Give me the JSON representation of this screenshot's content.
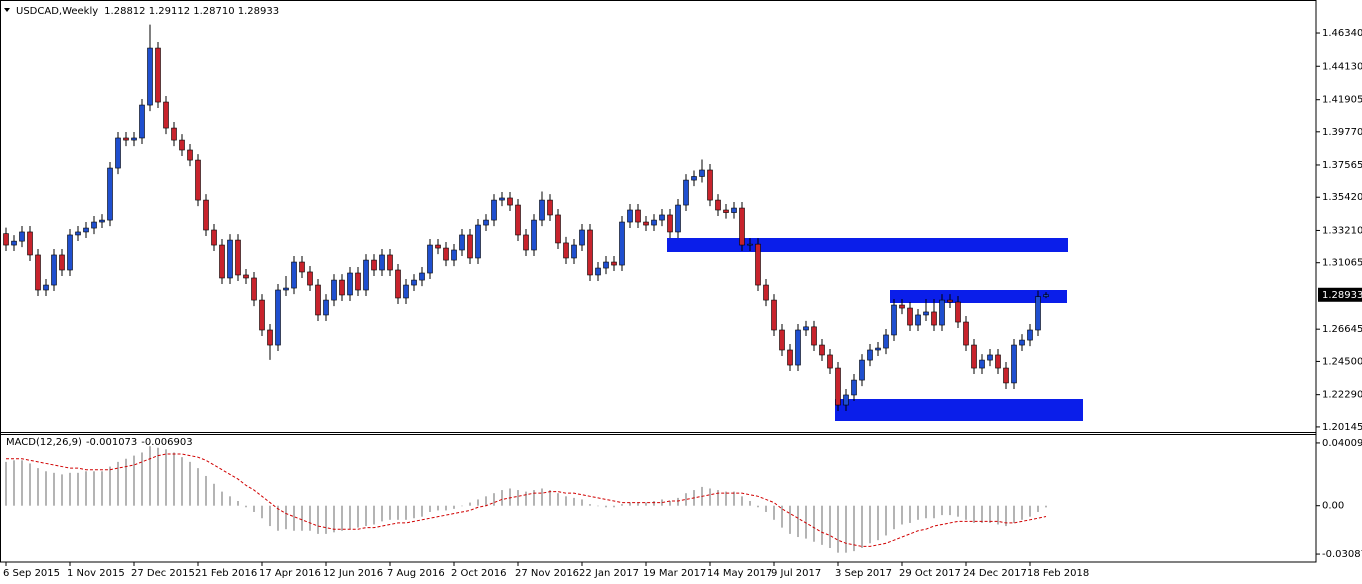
{
  "chart_data": [
    {
      "type": "candlestick",
      "title": "USDCAD,Weekly",
      "subtitle": "1.28812 1.29112 1.28710 1.28933",
      "up_color": "#1f4fcf",
      "down_color": "#c8232c",
      "wick_color": "#000000",
      "categories": [
        "6 Sep 2015",
        null,
        null,
        null,
        null,
        null,
        null,
        null,
        "1 Nov 2015",
        null,
        null,
        null,
        null,
        null,
        null,
        null,
        "27 Dec 2015",
        null,
        null,
        null,
        null,
        null,
        null,
        null,
        "21 Feb 2016",
        null,
        null,
        null,
        null,
        null,
        null,
        null,
        "17 Apr 2016",
        null,
        null,
        null,
        null,
        null,
        null,
        null,
        "12 Jun 2016",
        null,
        null,
        null,
        null,
        null,
        null,
        null,
        "7 Aug 2016",
        null,
        null,
        null,
        null,
        null,
        null,
        null,
        "2 Oct 2016",
        null,
        null,
        null,
        null,
        null,
        null,
        null,
        "27 Nov 2016",
        null,
        null,
        null,
        null,
        null,
        null,
        null,
        "22 Jan 2017",
        null,
        null,
        null,
        null,
        null,
        null,
        null,
        "19 Mar 2017",
        null,
        null,
        null,
        null,
        null,
        null,
        null,
        "14 May 2017",
        null,
        null,
        null,
        null,
        null,
        null,
        null,
        "9 Jul 2017",
        null,
        null,
        null,
        null,
        null,
        null,
        null,
        "3 Sep 2017",
        null,
        null,
        null,
        null,
        null,
        null,
        null,
        "29 Oct 2017",
        null,
        null,
        null,
        null,
        null,
        null,
        null,
        "24 Dec 2017",
        null,
        null,
        null,
        null,
        null,
        null,
        null,
        "18 Feb 2018",
        null,
        null
      ],
      "open": [
        1.33,
        1.3224,
        1.325,
        1.3311,
        1.3158,
        1.2925,
        1.2958,
        1.3158,
        1.3058,
        1.3291,
        1.3311,
        1.3337,
        1.3377,
        1.339,
        1.3736,
        1.3936,
        1.3922,
        1.3936,
        1.4155,
        1.4534,
        1.4175,
        1.4002,
        1.3922,
        1.3856,
        1.3789,
        1.3523,
        1.3324,
        1.3224,
        1.3005,
        1.3257,
        1.3025,
        1.3005,
        1.2858,
        1.2659,
        1.2559,
        1.2925,
        1.2938,
        1.3111,
        1.3045,
        1.2958,
        1.2759,
        1.2858,
        1.2991,
        1.2892,
        1.3038,
        1.2925,
        1.3124,
        1.3058,
        1.3158,
        1.3058,
        1.2872,
        1.2958,
        1.2991,
        1.3038,
        1.3224,
        1.3204,
        1.3124,
        1.3191,
        1.3291,
        1.3138,
        1.3357,
        1.339,
        1.3523,
        1.3537,
        1.349,
        1.3291,
        1.3191,
        1.339,
        1.3523,
        1.3424,
        1.3238,
        1.3138,
        1.3224,
        1.3324,
        1.3025,
        1.3071,
        1.3111,
        1.3091,
        1.3377,
        1.3457,
        1.3377,
        1.3357,
        1.339,
        1.3424,
        1.3311,
        1.349,
        1.3656,
        1.368,
        1.3723,
        1.3523,
        1.3457,
        1.344,
        1.347,
        1.3224,
        1.323,
        1.2958,
        1.2858,
        1.2659,
        1.2526,
        1.2426,
        1.2659,
        1.268,
        1.2559,
        1.2493,
        1.2406,
        1.216,
        1.2227,
        1.2326,
        1.2459,
        1.2526,
        1.2539,
        1.2626,
        1.2825,
        1.2805,
        1.2692,
        1.2759,
        1.2779,
        1.2692,
        1.2858,
        1.2845,
        1.2712,
        1.2559,
        1.2406,
        1.2459,
        1.2493,
        1.2406,
        1.2307,
        1.2559,
        1.2592,
        1.2659,
        1.28812
      ],
      "high": [
        1.334,
        1.329,
        1.3351,
        1.3351,
        1.3198,
        1.2998,
        1.3198,
        1.3198,
        1.3331,
        1.3351,
        1.3377,
        1.3417,
        1.343,
        1.3776,
        1.3976,
        1.3976,
        1.3976,
        1.4195,
        1.469,
        1.4574,
        1.4215,
        1.4042,
        1.3962,
        1.3896,
        1.3829,
        1.3563,
        1.3364,
        1.3264,
        1.3297,
        1.3297,
        1.3065,
        1.3045,
        1.2898,
        1.2699,
        1.2965,
        1.3018,
        1.3151,
        1.3151,
        1.3085,
        1.2998,
        1.2898,
        1.3031,
        1.3031,
        1.3078,
        1.3078,
        1.3164,
        1.3164,
        1.3198,
        1.3198,
        1.3098,
        1.2998,
        1.3031,
        1.3078,
        1.3264,
        1.3264,
        1.3244,
        1.3231,
        1.3331,
        1.3331,
        1.3397,
        1.343,
        1.3563,
        1.3577,
        1.3577,
        1.353,
        1.3331,
        1.343,
        1.358,
        1.3563,
        1.3464,
        1.3278,
        1.3264,
        1.3364,
        1.3364,
        1.3111,
        1.3151,
        1.3151,
        1.3417,
        1.3497,
        1.3497,
        1.3417,
        1.343,
        1.3464,
        1.3464,
        1.353,
        1.3696,
        1.372,
        1.3793,
        1.3763,
        1.3563,
        1.3497,
        1.351,
        1.351,
        1.327,
        1.327,
        1.2998,
        1.2898,
        1.2699,
        1.2566,
        1.2699,
        1.272,
        1.272,
        1.2599,
        1.2533,
        1.2446,
        1.2267,
        1.2366,
        1.2499,
        1.2566,
        1.2579,
        1.2666,
        1.2865,
        1.2865,
        1.2845,
        1.2799,
        1.2865,
        1.2865,
        1.2898,
        1.2898,
        1.2885,
        1.2752,
        1.2599,
        1.2499,
        1.2533,
        1.2533,
        1.2446,
        1.2599,
        1.2632,
        1.2699,
        1.2921,
        1.29112
      ],
      "low": [
        1.3184,
        1.3184,
        1.321,
        1.3118,
        1.2885,
        1.2885,
        1.2918,
        1.3018,
        1.3018,
        1.3251,
        1.3271,
        1.3297,
        1.3337,
        1.335,
        1.3696,
        1.3882,
        1.3882,
        1.3896,
        1.4115,
        1.4135,
        1.3962,
        1.3882,
        1.3816,
        1.3749,
        1.3483,
        1.3284,
        1.3184,
        1.2965,
        1.2965,
        1.2985,
        1.2965,
        1.2818,
        1.2619,
        1.246,
        1.2519,
        1.2885,
        1.2898,
        1.3005,
        1.2918,
        1.2719,
        1.2719,
        1.2818,
        1.2852,
        1.2852,
        1.2885,
        1.2885,
        1.3018,
        1.3018,
        1.3018,
        1.2832,
        1.2832,
        1.2918,
        1.2951,
        1.2998,
        1.3164,
        1.3084,
        1.3084,
        1.3151,
        1.3098,
        1.3098,
        1.3317,
        1.335,
        1.3483,
        1.345,
        1.3251,
        1.3151,
        1.3151,
        1.335,
        1.3384,
        1.3198,
        1.3098,
        1.3098,
        1.3184,
        1.2985,
        1.2985,
        1.3031,
        1.3051,
        1.3051,
        1.3337,
        1.3337,
        1.3317,
        1.3317,
        1.335,
        1.3271,
        1.3271,
        1.345,
        1.3616,
        1.364,
        1.3483,
        1.3417,
        1.34,
        1.34,
        1.3184,
        1.3184,
        1.2918,
        1.2818,
        1.2619,
        1.2486,
        1.2386,
        1.2386,
        1.2619,
        1.2519,
        1.2453,
        1.2366,
        1.212,
        1.212,
        1.2187,
        1.2286,
        1.2419,
        1.2486,
        1.2499,
        1.2586,
        1.2765,
        1.2652,
        1.2652,
        1.2719,
        1.2652,
        1.2652,
        1.2805,
        1.2672,
        1.2519,
        1.2366,
        1.2366,
        1.2419,
        1.2366,
        1.2267,
        1.2267,
        1.2519,
        1.2552,
        1.2619,
        1.2871
      ],
      "close": [
        1.3224,
        1.325,
        1.3311,
        1.3158,
        1.2925,
        1.2958,
        1.3158,
        1.3058,
        1.3291,
        1.3311,
        1.3337,
        1.3377,
        1.339,
        1.3736,
        1.3936,
        1.3922,
        1.3936,
        1.4155,
        1.4534,
        1.4175,
        1.4002,
        1.3922,
        1.3856,
        1.3789,
        1.3523,
        1.3324,
        1.3224,
        1.3005,
        1.3257,
        1.3025,
        1.3005,
        1.2858,
        1.2659,
        1.2559,
        1.2925,
        1.2938,
        1.3111,
        1.3045,
        1.2958,
        1.2759,
        1.2858,
        1.2991,
        1.2892,
        1.3038,
        1.2925,
        1.3124,
        1.3058,
        1.3158,
        1.3058,
        1.2872,
        1.2958,
        1.2991,
        1.3038,
        1.3224,
        1.3204,
        1.3124,
        1.3191,
        1.3291,
        1.3138,
        1.3357,
        1.339,
        1.3523,
        1.3537,
        1.349,
        1.3291,
        1.3191,
        1.339,
        1.3523,
        1.3424,
        1.3238,
        1.3138,
        1.3224,
        1.3324,
        1.3025,
        1.3071,
        1.3111,
        1.3091,
        1.3377,
        1.3457,
        1.3377,
        1.3357,
        1.339,
        1.3424,
        1.3311,
        1.349,
        1.3656,
        1.368,
        1.3723,
        1.3523,
        1.3457,
        1.344,
        1.347,
        1.3224,
        1.323,
        1.2958,
        1.2858,
        1.2659,
        1.2526,
        1.2426,
        1.2659,
        1.268,
        1.2559,
        1.2493,
        1.2406,
        1.216,
        1.2227,
        1.2326,
        1.2459,
        1.2526,
        1.2539,
        1.2626,
        1.2825,
        1.2805,
        1.2692,
        1.2759,
        1.2779,
        1.2692,
        1.2858,
        1.2845,
        1.2712,
        1.2559,
        1.2406,
        1.2459,
        1.2493,
        1.2406,
        1.2307,
        1.2559,
        1.2592,
        1.2659,
        1.2881,
        1.28933
      ],
      "ylim": [
        1.1994,
        1.4827
      ],
      "yticks": [
        {
          "value": 1.4634,
          "label": "1.46340"
        },
        {
          "value": 1.4413,
          "label": "1.44130"
        },
        1.41905,
        {
          "value": 1.3977,
          "label": "1.39770"
        },
        1.37565,
        {
          "value": 1.3542,
          "label": "1.35420"
        },
        {
          "value": 1.3321,
          "label": "1.33210"
        },
        1.31065,
        1.26645,
        {
          "value": 1.245,
          "label": "1.24500"
        },
        {
          "value": 1.2229,
          "label": "1.22290"
        },
        1.20145
      ]
    },
    {
      "type": "macd",
      "title": "MACD(12,26,9)",
      "color": "#b4b4b4",
      "signal_color": "#d00000",
      "values": [
        0.028,
        0.029,
        0.029,
        0.027,
        0.024,
        0.022,
        0.021,
        0.02,
        0.021,
        0.021,
        0.022,
        0.022,
        0.022,
        0.025,
        0.028,
        0.03,
        0.032,
        0.034,
        0.038,
        0.037,
        0.036,
        0.034,
        0.031,
        0.028,
        0.024,
        0.019,
        0.014,
        0.009,
        0.006,
        0.003,
        -0.001,
        -0.004,
        -0.008,
        -0.013,
        -0.016,
        -0.015,
        -0.016,
        -0.016,
        -0.016,
        -0.018,
        -0.018,
        -0.017,
        -0.016,
        -0.015,
        -0.014,
        -0.013,
        -0.012,
        -0.01,
        -0.009,
        -0.009,
        -0.009,
        -0.008,
        -0.007,
        -0.004,
        -0.003,
        -0.003,
        -0.002,
        0.0,
        0.002,
        0.004,
        0.006,
        0.008,
        0.01,
        0.011,
        0.01,
        0.009,
        0.01,
        0.011,
        0.01,
        0.008,
        0.006,
        0.005,
        0.004,
        0.001,
        0.0,
        -0.001,
        -0.001,
        0.001,
        0.002,
        0.002,
        0.002,
        0.003,
        0.004,
        0.003,
        0.005,
        0.008,
        0.01,
        0.012,
        0.011,
        0.01,
        0.009,
        0.009,
        0.006,
        0.003,
        -0.001,
        -0.004,
        -0.009,
        -0.014,
        -0.018,
        -0.02,
        -0.021,
        -0.023,
        -0.025,
        -0.027,
        -0.03,
        -0.03,
        -0.029,
        -0.027,
        -0.024,
        -0.022,
        -0.019,
        -0.015,
        -0.012,
        -0.011,
        -0.009,
        -0.008,
        -0.008,
        -0.006,
        -0.006,
        -0.007,
        -0.009,
        -0.011,
        -0.011,
        -0.011,
        -0.012,
        -0.013,
        -0.011,
        -0.009,
        -0.007,
        -0.004,
        -0.001073
      ],
      "signal": [
        0.03,
        0.03,
        0.03,
        0.029,
        0.028,
        0.027,
        0.026,
        0.025,
        0.024,
        0.024,
        0.023,
        0.023,
        0.023,
        0.023,
        0.024,
        0.025,
        0.026,
        0.028,
        0.03,
        0.032,
        0.033,
        0.033,
        0.033,
        0.032,
        0.031,
        0.029,
        0.026,
        0.023,
        0.02,
        0.017,
        0.013,
        0.01,
        0.006,
        0.002,
        -0.002,
        -0.005,
        -0.007,
        -0.009,
        -0.011,
        -0.013,
        -0.014,
        -0.015,
        -0.015,
        -0.015,
        -0.015,
        -0.014,
        -0.014,
        -0.013,
        -0.012,
        -0.011,
        -0.011,
        -0.01,
        -0.009,
        -0.008,
        -0.007,
        -0.006,
        -0.005,
        -0.004,
        -0.003,
        -0.001,
        0.0,
        0.002,
        0.004,
        0.005,
        0.006,
        0.007,
        0.008,
        0.008,
        0.009,
        0.009,
        0.008,
        0.008,
        0.007,
        0.006,
        0.005,
        0.004,
        0.003,
        0.002,
        0.002,
        0.002,
        0.002,
        0.002,
        0.002,
        0.003,
        0.003,
        0.004,
        0.005,
        0.006,
        0.007,
        0.008,
        0.008,
        0.008,
        0.008,
        0.007,
        0.006,
        0.004,
        0.002,
        -0.002,
        -0.005,
        -0.008,
        -0.011,
        -0.014,
        -0.017,
        -0.019,
        -0.022,
        -0.024,
        -0.025,
        -0.026,
        -0.026,
        -0.025,
        -0.024,
        -0.022,
        -0.02,
        -0.018,
        -0.016,
        -0.015,
        -0.013,
        -0.012,
        -0.011,
        -0.01,
        -0.01,
        -0.01,
        -0.01,
        -0.01,
        -0.01,
        -0.011,
        -0.011,
        -0.01,
        -0.009,
        -0.008,
        -0.006903
      ],
      "ylim": [
        -0.03531,
        0.04516
      ],
      "yticks": [
        0.040094,
        {
          "value": 0,
          "label": "0.00"
        },
        -0.030874
      ]
    }
  ]
}
